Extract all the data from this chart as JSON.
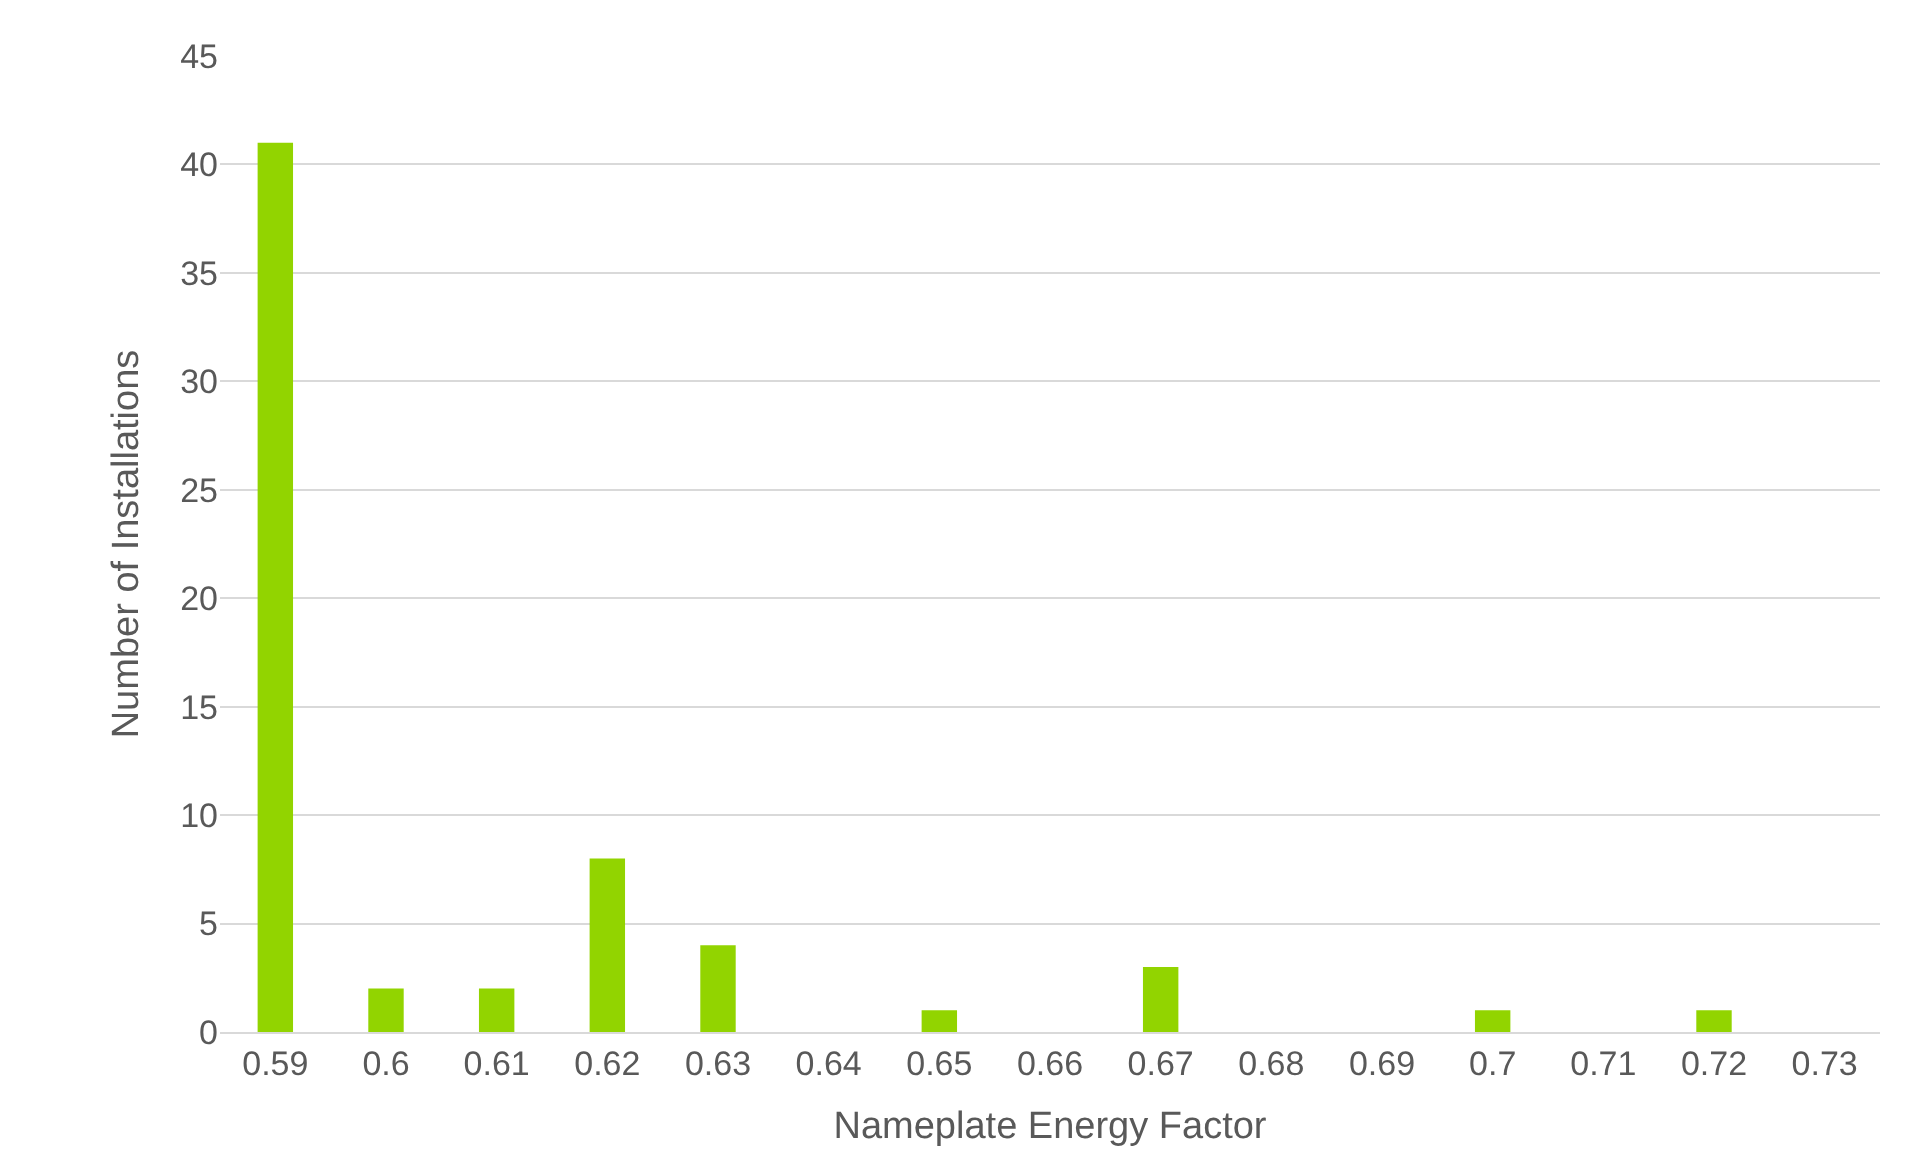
{
  "chart_data": {
    "type": "bar",
    "xlabel": "Nameplate Energy Factor",
    "ylabel": "Number of Installations",
    "categories": [
      "0.59",
      "0.6",
      "0.61",
      "0.62",
      "0.63",
      "0.64",
      "0.65",
      "0.66",
      "0.67",
      "0.68",
      "0.69",
      "0.7",
      "0.71",
      "0.72",
      "0.73"
    ],
    "values": [
      41,
      2,
      2,
      8,
      4,
      0,
      1,
      0,
      3,
      0,
      0,
      1,
      0,
      1,
      0
    ],
    "color": "#92d400",
    "ylim": [
      0,
      45
    ],
    "yticks": [
      0,
      5,
      10,
      15,
      20,
      25,
      30,
      35,
      40,
      45
    ],
    "grid": "y"
  }
}
